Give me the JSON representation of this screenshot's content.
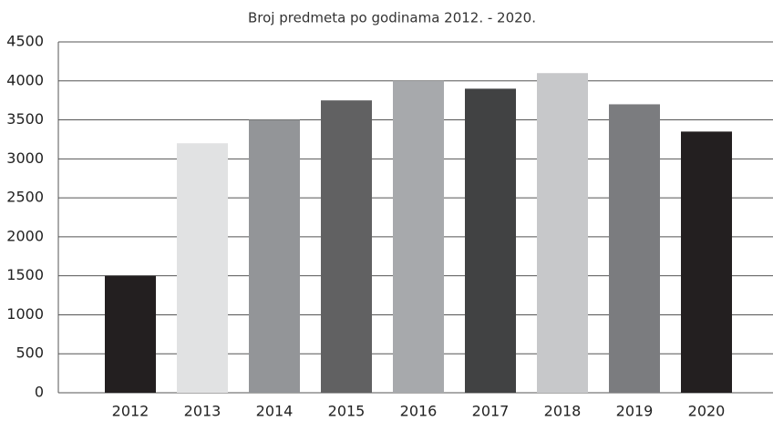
{
  "chart_data": {
    "type": "bar",
    "title": "Broj predmeta po godinama 2012. - 2020.",
    "categories": [
      "2012",
      "2013",
      "2014",
      "2015",
      "2016",
      "2017",
      "2018",
      "2019",
      "2020"
    ],
    "values": [
      1500,
      3200,
      3500,
      3750,
      4000,
      3900,
      4100,
      3700,
      3350
    ],
    "colors": [
      "#231f20",
      "#e1e2e3",
      "#939598",
      "#616162",
      "#a7a9ac",
      "#414243",
      "#c7c8ca",
      "#7b7c7f",
      "#231f20"
    ],
    "ylim": [
      0,
      4500
    ],
    "yticks": [
      0,
      500,
      1000,
      1500,
      2000,
      2500,
      3000,
      3500,
      4000,
      4500
    ],
    "grid": true
  }
}
